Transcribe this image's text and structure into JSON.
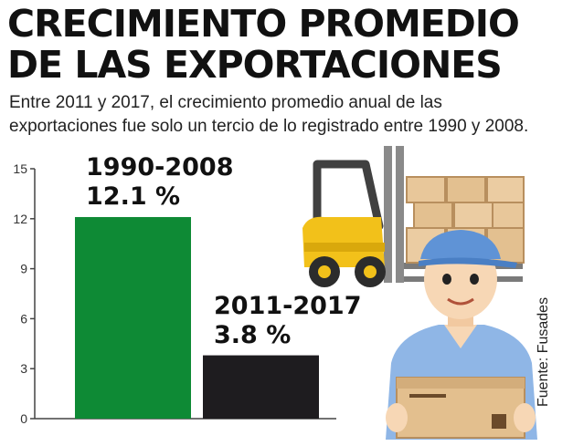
{
  "header": {
    "title_line1": "CRECIMIENTO PROMEDIO",
    "title_line2": "DE LAS EXPORTACIONES",
    "subtitle_line1": "Entre 2011 y 2017, el crecimiento promedio anual de las",
    "subtitle_line2": "exportaciones fue solo un tercio de lo registrado entre 1990 y 2008."
  },
  "source": "Fuente: Fusades",
  "colors": {
    "bar1": "#0e8a35",
    "bar2": "#1e1c1f",
    "axis": "#444444"
  },
  "chart_data": {
    "type": "bar",
    "categories": [
      "1990-2008",
      "2011-2017"
    ],
    "values": [
      12.1,
      3.8
    ],
    "value_labels": [
      "12.1 %",
      "3.8 %"
    ],
    "ylim": [
      0,
      15
    ],
    "yticks": [
      "0",
      "3",
      "6",
      "9",
      "12",
      "15"
    ],
    "title": "",
    "xlabel": "",
    "ylabel": "",
    "grid": false
  },
  "illustration": {
    "forklift": "forklift-with-boxes-icon",
    "worker": "worker-holding-box-icon"
  }
}
